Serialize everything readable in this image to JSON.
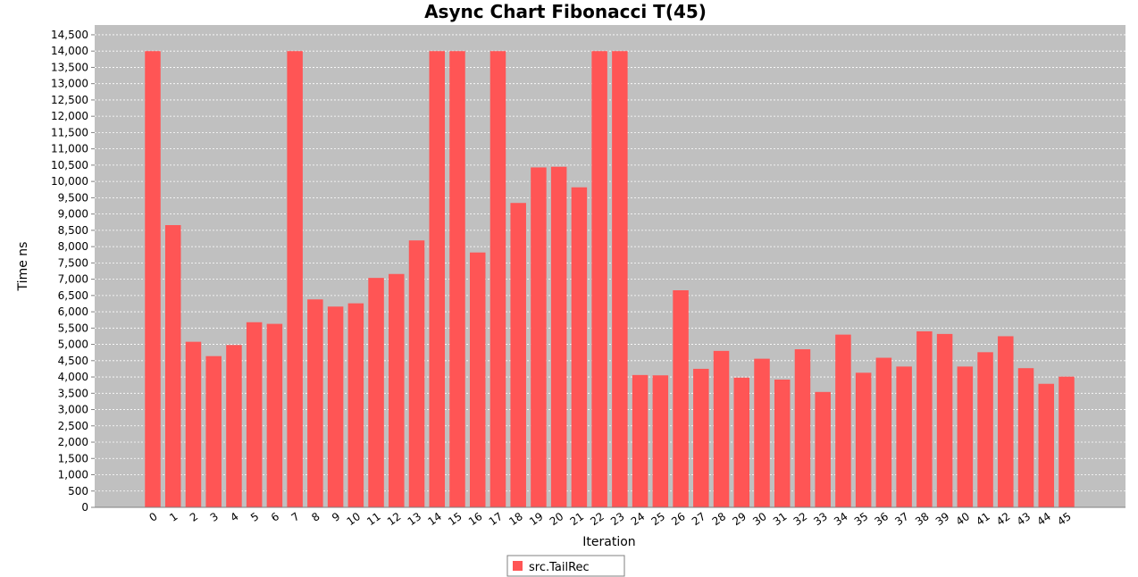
{
  "chart_data": {
    "type": "bar",
    "title": "Async Chart Fibonacci T(45)",
    "xlabel": "Iteration",
    "ylabel": "Time ns",
    "ylim": [
      0,
      14800
    ],
    "yticks": [
      0,
      500,
      1000,
      1500,
      2000,
      2500,
      3000,
      3500,
      4000,
      4500,
      5000,
      5500,
      6000,
      6500,
      7000,
      7500,
      8000,
      8500,
      9000,
      9500,
      10000,
      10500,
      11000,
      11500,
      12000,
      12500,
      13000,
      13500,
      14000,
      14500
    ],
    "ytick_labels": [
      "0",
      "500",
      "1,000",
      "1,500",
      "2,000",
      "2,500",
      "3,000",
      "3,500",
      "4,000",
      "4,500",
      "5,000",
      "5,500",
      "6,000",
      "6,500",
      "7,000",
      "7,500",
      "8,000",
      "8,500",
      "9,000",
      "9,500",
      "10,000",
      "10,500",
      "11,000",
      "11,500",
      "12,000",
      "12,500",
      "13,000",
      "13,500",
      "14,000",
      "14,500"
    ],
    "grid": true,
    "legend_position": "bottom",
    "background_color": "#c0c0c0",
    "bar_color": "#ff5555",
    "categories": [
      "0",
      "1",
      "2",
      "3",
      "4",
      "5",
      "6",
      "7",
      "8",
      "9",
      "10",
      "11",
      "12",
      "13",
      "14",
      "15",
      "16",
      "17",
      "18",
      "19",
      "20",
      "21",
      "22",
      "23",
      "24",
      "25",
      "26",
      "27",
      "28",
      "29",
      "30",
      "31",
      "32",
      "33",
      "34",
      "35",
      "36",
      "37",
      "38",
      "39",
      "40",
      "41",
      "42",
      "43",
      "44",
      "45"
    ],
    "series": [
      {
        "name": "src.TailRec",
        "values": [
          14000,
          8660,
          5080,
          4640,
          4980,
          5680,
          5630,
          14000,
          6380,
          6160,
          6260,
          7040,
          7160,
          8190,
          14000,
          14000,
          7820,
          14000,
          9340,
          10430,
          10450,
          9820,
          14000,
          14000,
          4060,
          4050,
          6660,
          4250,
          4800,
          3980,
          4560,
          3920,
          4850,
          3540,
          5300,
          4130,
          4590,
          4320,
          5400,
          5320,
          4320,
          4760,
          5250,
          4270,
          3790,
          4010
        ]
      }
    ]
  }
}
